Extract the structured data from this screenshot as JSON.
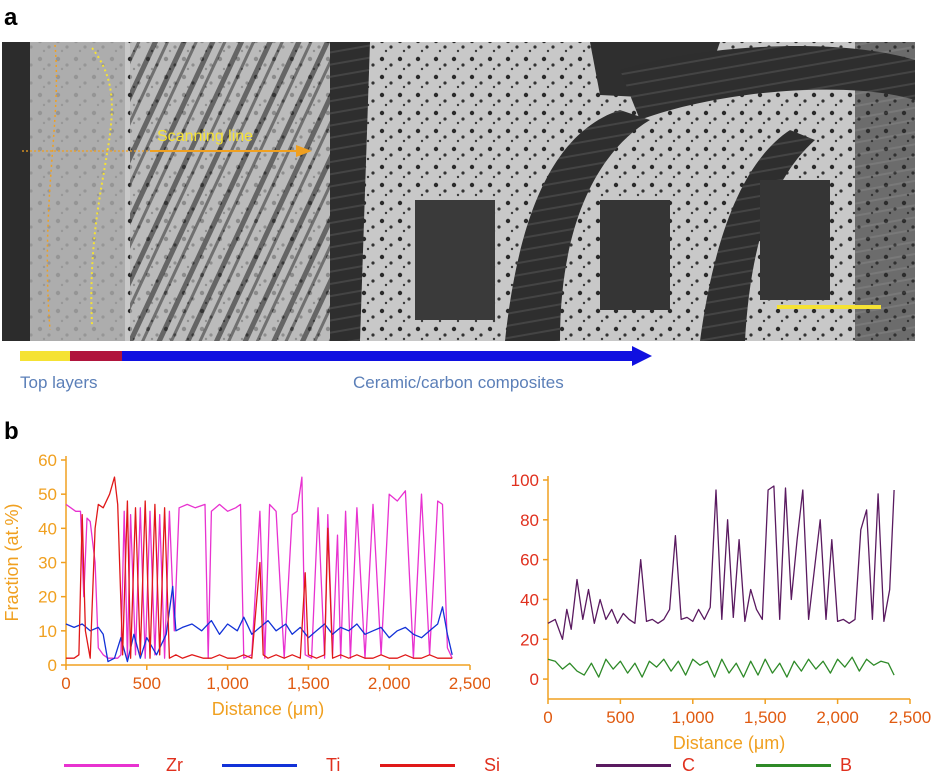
{
  "panel_a": {
    "label": "a",
    "scanning_line_label": "Scanning line",
    "region_left_label": "Top layers",
    "region_right_label": "Ceramic/carbon composites",
    "colors": {
      "top_yellow": "#f5e234",
      "top_red": "#b0143c",
      "composite_blue": "#1010e0",
      "label_blue": "#5b7fb8",
      "scan_orange": "#f0a020",
      "scale_bar": "#f5e234"
    }
  },
  "panel_b": {
    "label": "b"
  },
  "chart_data": [
    {
      "type": "line",
      "xlabel": "Distance (μm)",
      "ylabel": "Fraction (at.%)",
      "xlim": [
        0,
        2500
      ],
      "ylim": [
        0,
        60
      ],
      "x_ticks": [
        "0",
        "500",
        "1,000",
        "1,500",
        "2,000",
        "2,500"
      ],
      "y_ticks": [
        "0",
        "10",
        "20",
        "30",
        "40",
        "50",
        "60"
      ],
      "grid": false,
      "series": [
        {
          "name": "Zr",
          "color": "#e832d0",
          "x": [
            0,
            30,
            60,
            90,
            110,
            130,
            150,
            180,
            200,
            230,
            260,
            290,
            320,
            340,
            360,
            380,
            400,
            430,
            460,
            490,
            520,
            550,
            580,
            610,
            640,
            670,
            700,
            750,
            800,
            860,
            880,
            900,
            950,
            1000,
            1050,
            1080,
            1100,
            1150,
            1200,
            1230,
            1260,
            1300,
            1350,
            1400,
            1430,
            1460,
            1480,
            1520,
            1560,
            1600,
            1620,
            1650,
            1680,
            1700,
            1730,
            1760,
            1800,
            1850,
            1900,
            1950,
            2000,
            2050,
            2100,
            2150,
            2200,
            2250,
            2300,
            2330,
            2360,
            2390
          ],
          "y": [
            47,
            46,
            45,
            45,
            20,
            43,
            42,
            30,
            5,
            3,
            2,
            2,
            2,
            3,
            45,
            2,
            44,
            3,
            46,
            2,
            45,
            3,
            44,
            2,
            45,
            10,
            46,
            47,
            46,
            47,
            2,
            45,
            47,
            45,
            46,
            47,
            2,
            3,
            45,
            2,
            47,
            45,
            2,
            44,
            45,
            55,
            3,
            2,
            46,
            2,
            44,
            3,
            38,
            2,
            45,
            2,
            46,
            2,
            47,
            3,
            50,
            48,
            51,
            2,
            50,
            3,
            48,
            47,
            5,
            2
          ]
        },
        {
          "name": "Ti",
          "color": "#1232d8",
          "x": [
            0,
            50,
            100,
            150,
            200,
            230,
            260,
            300,
            340,
            380,
            420,
            460,
            500,
            560,
            620,
            660,
            680,
            720,
            780,
            840,
            900,
            950,
            1000,
            1060,
            1100,
            1150,
            1200,
            1250,
            1300,
            1360,
            1400,
            1450,
            1500,
            1550,
            1600,
            1650,
            1700,
            1750,
            1800,
            1850,
            1900,
            1950,
            2000,
            2050,
            2100,
            2150,
            2200,
            2250,
            2300,
            2330,
            2360,
            2390
          ],
          "y": [
            12,
            11,
            12,
            10,
            11,
            9,
            1,
            2,
            8,
            1,
            9,
            2,
            8,
            3,
            9,
            23,
            10,
            11,
            12,
            10,
            13,
            9,
            12,
            10,
            14,
            9,
            11,
            13,
            10,
            12,
            9,
            11,
            8,
            10,
            12,
            9,
            11,
            10,
            12,
            9,
            10,
            11,
            8,
            10,
            11,
            9,
            8,
            10,
            12,
            17,
            9,
            3
          ]
        },
        {
          "name": "Si",
          "color": "#e01818",
          "x": [
            0,
            50,
            80,
            100,
            120,
            150,
            180,
            200,
            230,
            270,
            300,
            320,
            350,
            380,
            400,
            430,
            460,
            490,
            520,
            550,
            580,
            610,
            640,
            680,
            720,
            780,
            850,
            900,
            950,
            1000,
            1050,
            1100,
            1150,
            1200,
            1220,
            1250,
            1300,
            1350,
            1400,
            1450,
            1480,
            1500,
            1550,
            1600,
            1620,
            1650,
            1700,
            1750,
            1800,
            1850,
            1900,
            1950,
            2000,
            2050,
            2100,
            2150,
            2200,
            2250,
            2300,
            2350,
            2390
          ],
          "y": [
            2,
            2,
            3,
            44,
            10,
            2,
            40,
            47,
            46,
            50,
            55,
            47,
            3,
            48,
            2,
            46,
            3,
            48,
            2,
            47,
            3,
            46,
            2,
            3,
            2,
            3,
            2,
            2,
            3,
            2,
            2,
            3,
            2,
            30,
            3,
            2,
            3,
            2,
            3,
            2,
            27,
            3,
            2,
            3,
            40,
            2,
            3,
            2,
            3,
            2,
            2,
            3,
            2,
            2,
            3,
            2,
            2,
            3,
            2,
            2,
            2
          ]
        }
      ]
    },
    {
      "type": "line",
      "xlabel": "Distance (μm)",
      "ylabel": "",
      "xlim": [
        0,
        2500
      ],
      "ylim": [
        -10,
        100
      ],
      "x_ticks": [
        "0",
        "500",
        "1,000",
        "1,500",
        "2,000",
        "2,500"
      ],
      "y_ticks": [
        "0",
        "20",
        "40",
        "60",
        "80",
        "100"
      ],
      "grid": false,
      "series": [
        {
          "name": "C",
          "color": "#5a1a60",
          "x": [
            0,
            50,
            100,
            130,
            160,
            200,
            240,
            280,
            320,
            360,
            400,
            440,
            480,
            520,
            560,
            600,
            640,
            680,
            720,
            760,
            800,
            840,
            880,
            920,
            960,
            1000,
            1040,
            1080,
            1120,
            1160,
            1200,
            1240,
            1280,
            1320,
            1360,
            1400,
            1440,
            1480,
            1520,
            1560,
            1600,
            1640,
            1680,
            1720,
            1760,
            1800,
            1840,
            1880,
            1920,
            1960,
            2000,
            2040,
            2080,
            2120,
            2160,
            2200,
            2240,
            2280,
            2320,
            2360,
            2390
          ],
          "y": [
            28,
            30,
            20,
            35,
            25,
            50,
            30,
            45,
            28,
            40,
            30,
            35,
            28,
            33,
            30,
            28,
            60,
            29,
            30,
            28,
            30,
            35,
            72,
            30,
            31,
            29,
            35,
            30,
            36,
            95,
            30,
            80,
            31,
            70,
            29,
            45,
            35,
            30,
            95,
            97,
            30,
            96,
            40,
            70,
            95,
            30,
            55,
            80,
            30,
            70,
            29,
            30,
            28,
            30,
            75,
            85,
            30,
            93,
            29,
            45,
            95
          ]
        },
        {
          "name": "B",
          "color": "#2e8a28",
          "x": [
            0,
            50,
            100,
            150,
            200,
            250,
            300,
            350,
            400,
            450,
            500,
            550,
            600,
            650,
            700,
            750,
            800,
            850,
            900,
            950,
            1000,
            1050,
            1100,
            1150,
            1200,
            1250,
            1300,
            1350,
            1400,
            1450,
            1500,
            1550,
            1600,
            1650,
            1700,
            1750,
            1800,
            1850,
            1900,
            1950,
            2000,
            2050,
            2100,
            2150,
            2200,
            2250,
            2300,
            2350,
            2390
          ],
          "y": [
            10,
            9,
            5,
            8,
            4,
            2,
            8,
            1,
            10,
            5,
            9,
            3,
            8,
            1,
            9,
            6,
            10,
            4,
            9,
            2,
            10,
            7,
            9,
            1,
            10,
            3,
            8,
            1,
            9,
            2,
            10,
            3,
            8,
            1,
            9,
            4,
            10,
            5,
            9,
            3,
            10,
            6,
            11,
            4,
            10,
            7,
            9,
            8,
            2
          ]
        }
      ]
    }
  ]
}
